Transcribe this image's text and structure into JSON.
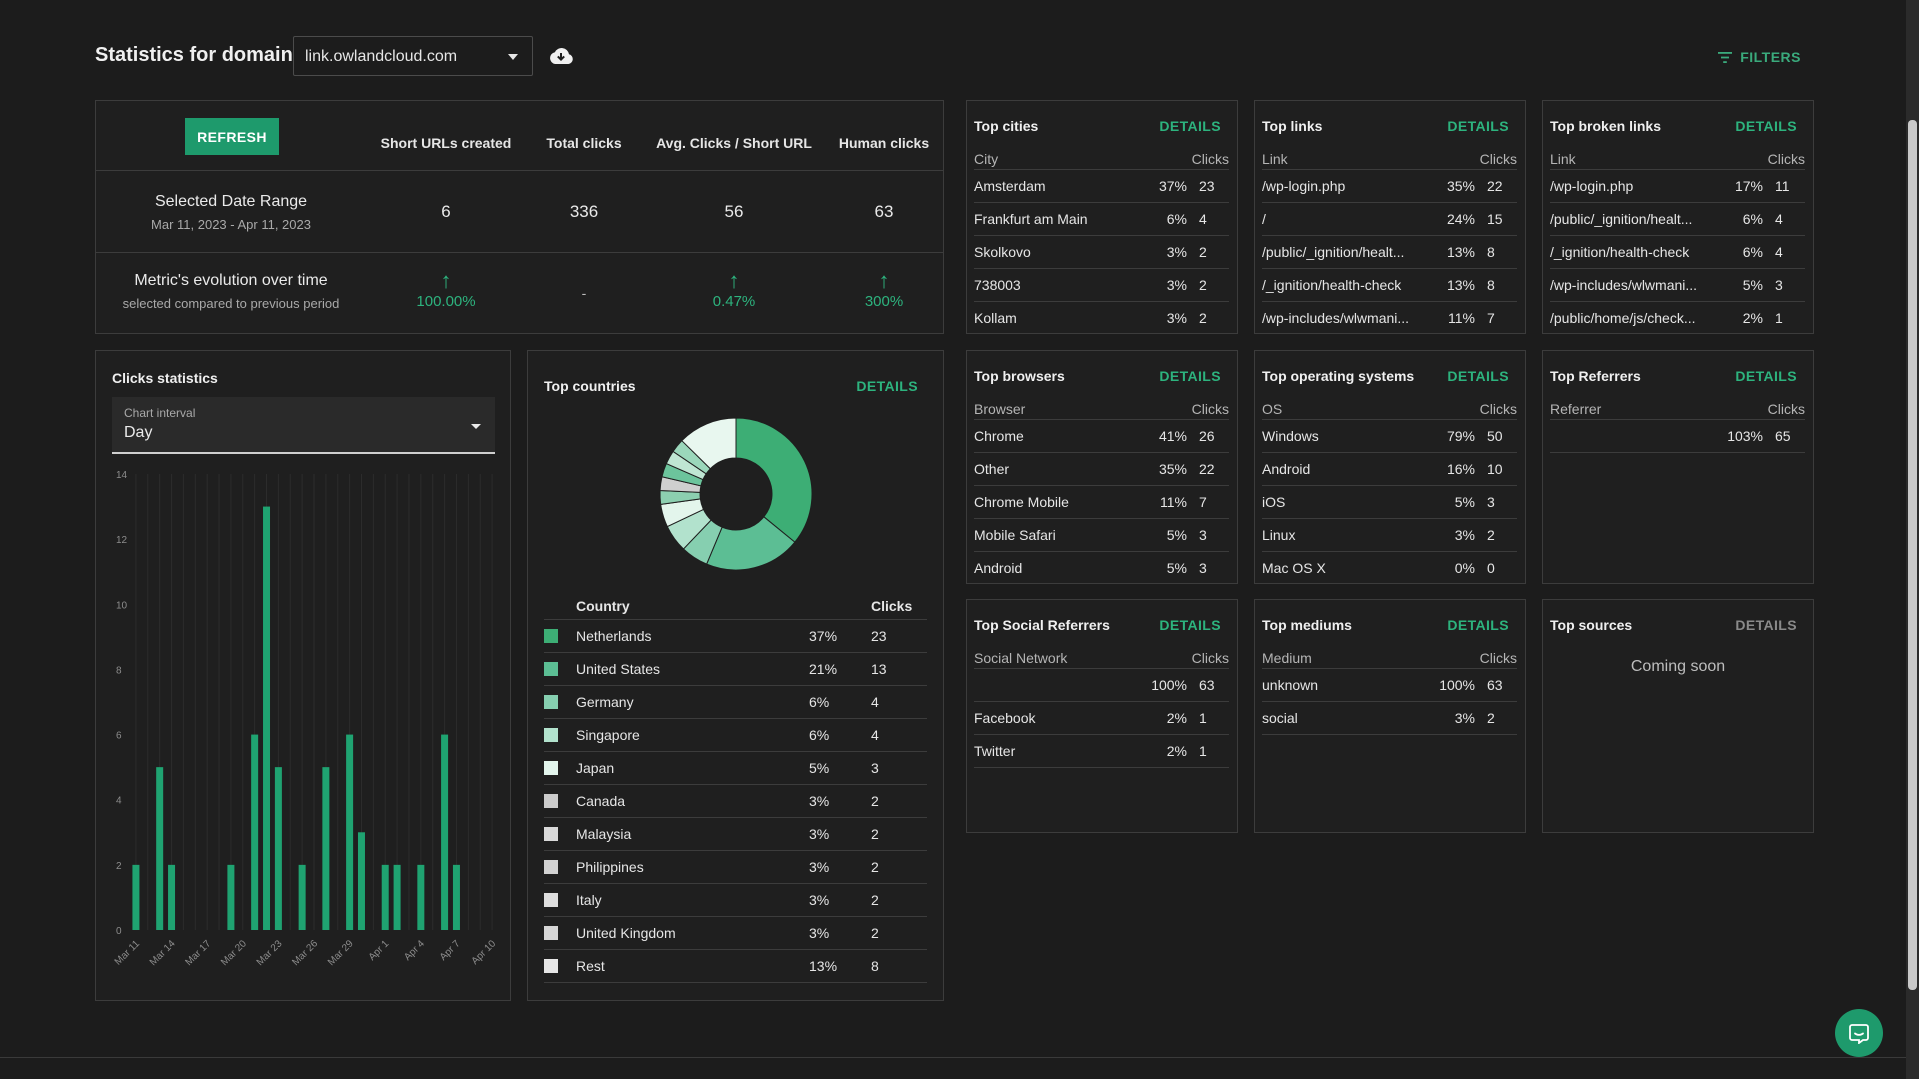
{
  "header": {
    "title": "Statistics for domain",
    "domain": "link.owlandcloud.com",
    "filters_label": "FILTERS"
  },
  "summary": {
    "refresh_label": "REFRESH",
    "columns": [
      "Short URLs created",
      "Total clicks",
      "Avg. Clicks / Short URL",
      "Human clicks"
    ],
    "range_title": "Selected Date Range",
    "range_dates": "Mar 11, 2023 - Apr 11, 2023",
    "values": [
      "6",
      "336",
      "56",
      "63"
    ],
    "evolution_title": "Metric's evolution over time",
    "evolution_sub": "selected compared to previous period",
    "evolution": [
      {
        "trend": "up",
        "value": "100.00%"
      },
      {
        "trend": "none",
        "value": "-"
      },
      {
        "trend": "up",
        "value": "0.47%"
      },
      {
        "trend": "up",
        "value": "300%"
      }
    ]
  },
  "clicks": {
    "title": "Clicks statistics",
    "interval_label": "Chart interval",
    "interval_value": "Day"
  },
  "chart_data": {
    "type": "bar",
    "title": "Clicks statistics",
    "ylim": [
      0,
      14
    ],
    "yticks": [
      0,
      2,
      4,
      6,
      8,
      10,
      12,
      14
    ],
    "xticks": [
      "Mar 11",
      "Mar 14",
      "Mar 17",
      "Mar 20",
      "Mar 23",
      "Mar 26",
      "Mar 29",
      "Apr 1",
      "Apr 4",
      "Apr 7",
      "Apr 10"
    ],
    "categories": [
      "Mar 11",
      "Mar 12",
      "Mar 13",
      "Mar 14",
      "Mar 15",
      "Mar 16",
      "Mar 17",
      "Mar 18",
      "Mar 19",
      "Mar 20",
      "Mar 21",
      "Mar 22",
      "Mar 23",
      "Mar 24",
      "Mar 25",
      "Mar 26",
      "Mar 27",
      "Mar 28",
      "Mar 29",
      "Mar 30",
      "Mar 31",
      "Apr 1",
      "Apr 2",
      "Apr 3",
      "Apr 4",
      "Apr 5",
      "Apr 6",
      "Apr 7",
      "Apr 8",
      "Apr 9",
      "Apr 10"
    ],
    "values": [
      2,
      0,
      5,
      2,
      0,
      0,
      0,
      0,
      2,
      0,
      6,
      13,
      5,
      0,
      2,
      0,
      5,
      0,
      6,
      3,
      0,
      2,
      2,
      0,
      2,
      0,
      6,
      2,
      0,
      0,
      0
    ],
    "color": "#1fa371"
  },
  "countries": {
    "title": "Top countries",
    "details": "DETAILS",
    "head": {
      "name": "Country",
      "clicks": "Clicks"
    },
    "rows": [
      {
        "name": "Netherlands",
        "pct": "37%",
        "clicks": "23",
        "color": "#3dae75"
      },
      {
        "name": "United States",
        "pct": "21%",
        "clicks": "13",
        "color": "#5cbe94"
      },
      {
        "name": "Germany",
        "pct": "6%",
        "clicks": "4",
        "color": "#86cfb0"
      },
      {
        "name": "Singapore",
        "pct": "6%",
        "clicks": "4",
        "color": "#b2e2cd"
      },
      {
        "name": "Japan",
        "pct": "5%",
        "clicks": "3",
        "color": "#e3f5ec"
      },
      {
        "name": "Canada",
        "pct": "3%",
        "clicks": "2",
        "color": "#cbcbcb"
      },
      {
        "name": "Malaysia",
        "pct": "3%",
        "clicks": "2",
        "color": "#d9d9d9"
      },
      {
        "name": "Philippines",
        "pct": "3%",
        "clicks": "2",
        "color": "#d2d2d2"
      },
      {
        "name": "Italy",
        "pct": "3%",
        "clicks": "2",
        "color": "#dedede"
      },
      {
        "name": "United Kingdom",
        "pct": "3%",
        "clicks": "2",
        "color": "#d6d6d6"
      },
      {
        "name": "Rest",
        "pct": "13%",
        "clicks": "8",
        "color": "#e6e6e6"
      }
    ],
    "donut": [
      {
        "name": "Netherlands",
        "value": 37,
        "color": "#3dae75"
      },
      {
        "name": "United States",
        "value": 21,
        "color": "#5cbe94"
      },
      {
        "name": "Germany",
        "value": 6,
        "color": "#86cfb0"
      },
      {
        "name": "Singapore",
        "value": 6,
        "color": "#b2e2cd"
      },
      {
        "name": "Japan",
        "value": 5,
        "color": "#e3f5ec"
      },
      {
        "name": "Canada",
        "value": 3,
        "color": "#8ccfb0"
      },
      {
        "name": "Malaysia",
        "value": 3,
        "color": "#cfcfcf"
      },
      {
        "name": "Philippines",
        "value": 3,
        "color": "#6cc49c"
      },
      {
        "name": "Italy",
        "value": 3,
        "color": "#bfe6d3"
      },
      {
        "name": "United Kingdom",
        "value": 3,
        "color": "#9bd7bb"
      },
      {
        "name": "Rest",
        "value": 13,
        "color": "#e8f7ef"
      }
    ]
  },
  "cards": [
    {
      "key": "cities",
      "title": "Top cities",
      "details": "DETAILS",
      "col": "City",
      "clicks": "Clicks",
      "rows": [
        [
          "Amsterdam",
          "37%",
          "23"
        ],
        [
          "Frankfurt am Main",
          "6%",
          "4"
        ],
        [
          "Skolkovo",
          "3%",
          "2"
        ],
        [
          "738003",
          "3%",
          "2"
        ],
        [
          "Kollam",
          "3%",
          "2"
        ]
      ]
    },
    {
      "key": "links",
      "title": "Top links",
      "details": "DETAILS",
      "col": "Link",
      "clicks": "Clicks",
      "rows": [
        [
          "/wp-login.php",
          "35%",
          "22"
        ],
        [
          "/",
          "24%",
          "15"
        ],
        [
          "/public/_ignition/healt...",
          "13%",
          "8"
        ],
        [
          "/_ignition/health-check",
          "13%",
          "8"
        ],
        [
          "/wp-includes/wlwmani...",
          "11%",
          "7"
        ]
      ]
    },
    {
      "key": "broken",
      "title": "Top broken links",
      "details": "DETAILS",
      "col": "Link",
      "clicks": "Clicks",
      "rows": [
        [
          "/wp-login.php",
          "17%",
          "11"
        ],
        [
          "/public/_ignition/healt...",
          "6%",
          "4"
        ],
        [
          "/_ignition/health-check",
          "6%",
          "4"
        ],
        [
          "/wp-includes/wlwmani...",
          "5%",
          "3"
        ],
        [
          "/public/home/js/check...",
          "2%",
          "1"
        ]
      ]
    },
    {
      "key": "browsers",
      "title": "Top browsers",
      "details": "DETAILS",
      "col": "Browser",
      "clicks": "Clicks",
      "rows": [
        [
          "Chrome",
          "41%",
          "26"
        ],
        [
          "Other",
          "35%",
          "22"
        ],
        [
          "Chrome Mobile",
          "11%",
          "7"
        ],
        [
          "Mobile Safari",
          "5%",
          "3"
        ],
        [
          "Android",
          "5%",
          "3"
        ]
      ]
    },
    {
      "key": "os",
      "title": "Top operating systems",
      "details": "DETAILS",
      "col": "OS",
      "clicks": "Clicks",
      "rows": [
        [
          "Windows",
          "79%",
          "50"
        ],
        [
          "Android",
          "16%",
          "10"
        ],
        [
          "iOS",
          "5%",
          "3"
        ],
        [
          "Linux",
          "3%",
          "2"
        ],
        [
          "Mac OS X",
          "0%",
          "0"
        ]
      ]
    },
    {
      "key": "referrers",
      "title": "Top Referrers",
      "details": "DETAILS",
      "col": "Referrer",
      "clicks": "Clicks",
      "rows": [
        [
          "",
          "103%",
          "65"
        ]
      ]
    },
    {
      "key": "social",
      "title": "Top Social Referrers",
      "details": "DETAILS",
      "col": "Social Network",
      "clicks": "Clicks",
      "rows": [
        [
          "",
          "100%",
          "63"
        ],
        [
          "Facebook",
          "2%",
          "1"
        ],
        [
          "Twitter",
          "2%",
          "1"
        ]
      ]
    },
    {
      "key": "mediums",
      "title": "Top mediums",
      "details": "DETAILS",
      "col": "Medium",
      "clicks": "Clicks",
      "rows": [
        [
          "unknown",
          "100%",
          "63"
        ],
        [
          "social",
          "3%",
          "2"
        ]
      ]
    },
    {
      "key": "sources",
      "title": "Top sources",
      "details": "DETAILS",
      "soon": "Coming soon",
      "rows": []
    }
  ]
}
